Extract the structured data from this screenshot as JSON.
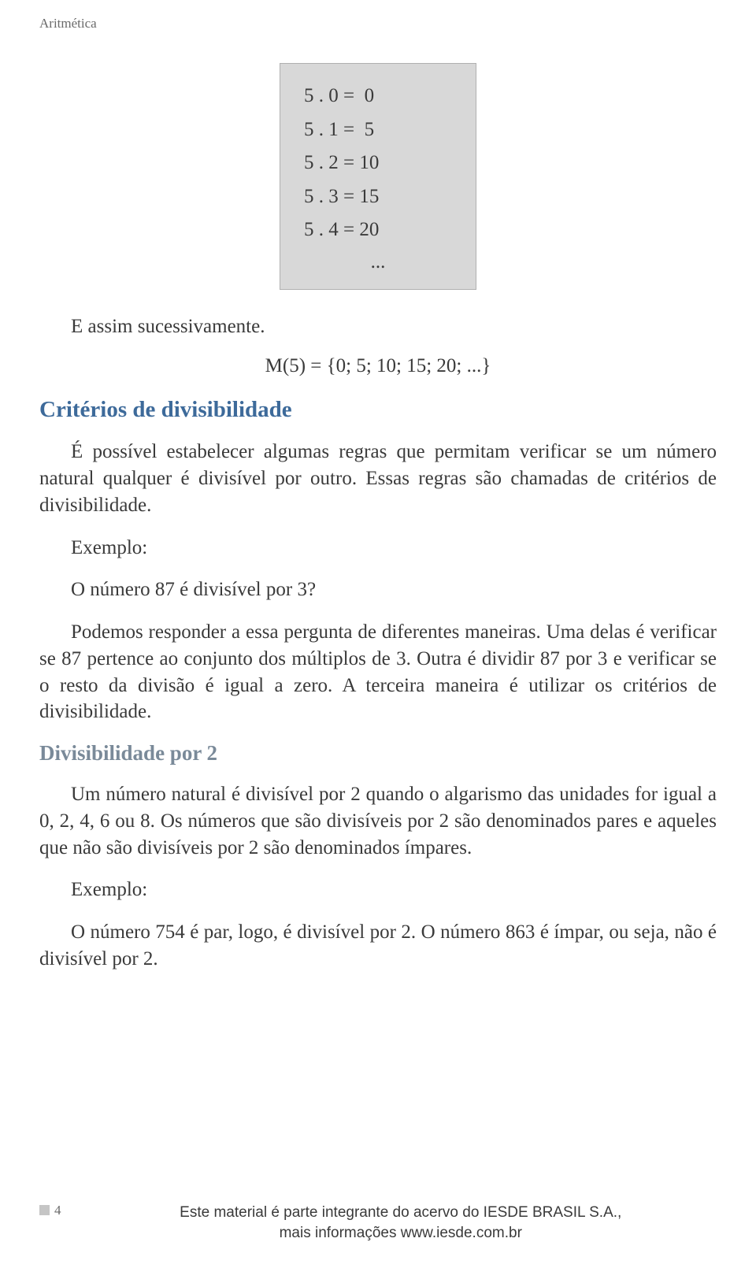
{
  "header": {
    "title": "Aritmética"
  },
  "mathbox": {
    "rows": [
      "5 . 0 =  0",
      "5 . 1 =  5",
      "5 . 2 = 10",
      "5 . 3 = 15",
      "5 . 4 = 20"
    ],
    "ellipsis": "...",
    "background_color": "#d8d8d8",
    "border_color": "#b0b0b0"
  },
  "text": {
    "p1": "E assim sucessivamente.",
    "p2": "M(5) = {0; 5; 10; 15; 20; ...}",
    "section1": "Critérios de divisibilidade",
    "p3": "É possível estabelecer algumas regras que permitam verificar se um número natural qualquer é divisível por outro. Essas regras são chamadas de critérios de divisibilidade.",
    "p4": "Exemplo:",
    "p5": "O número 87 é divisível por 3?",
    "p6": "Podemos responder a essa pergunta de diferentes maneiras. Uma delas é verificar se 87 pertence ao conjunto dos múltiplos de 3. Outra é dividir 87 por 3 e verificar se o resto da divisão é igual a zero. A terceira maneira é utilizar os critérios de divisibilidade.",
    "subsection1": "Divisibilidade por 2",
    "p7": "Um número natural é divisível por 2 quando o algarismo das unidades for igual a 0, 2, 4, 6 ou 8. Os números que são divisíveis por 2 são denominados pares e aqueles que não são divisíveis por 2 são denominados ímpares.",
    "p8": "Exemplo:",
    "p9": "O número 754 é par, logo, é divisível por 2. O número 863 é ímpar, ou seja, não é divisível por 2."
  },
  "footer": {
    "page": "4",
    "line1": "Este material é parte integrante do acervo do IESDE BRASIL S.A.,",
    "line2": "mais informações www.iesde.com.br"
  },
  "colors": {
    "text": "#3a3a3a",
    "section_heading": "#3d6a9a",
    "subsection_heading": "#7a8a99",
    "muted": "#6a6a6a",
    "background": "#ffffff"
  },
  "typography": {
    "body_fontsize": 25,
    "header_fontsize": 17,
    "section_fontsize": 29,
    "subsection_fontsize": 27,
    "footer_fontsize": 19,
    "font_family": "Georgia, Times New Roman, serif"
  }
}
